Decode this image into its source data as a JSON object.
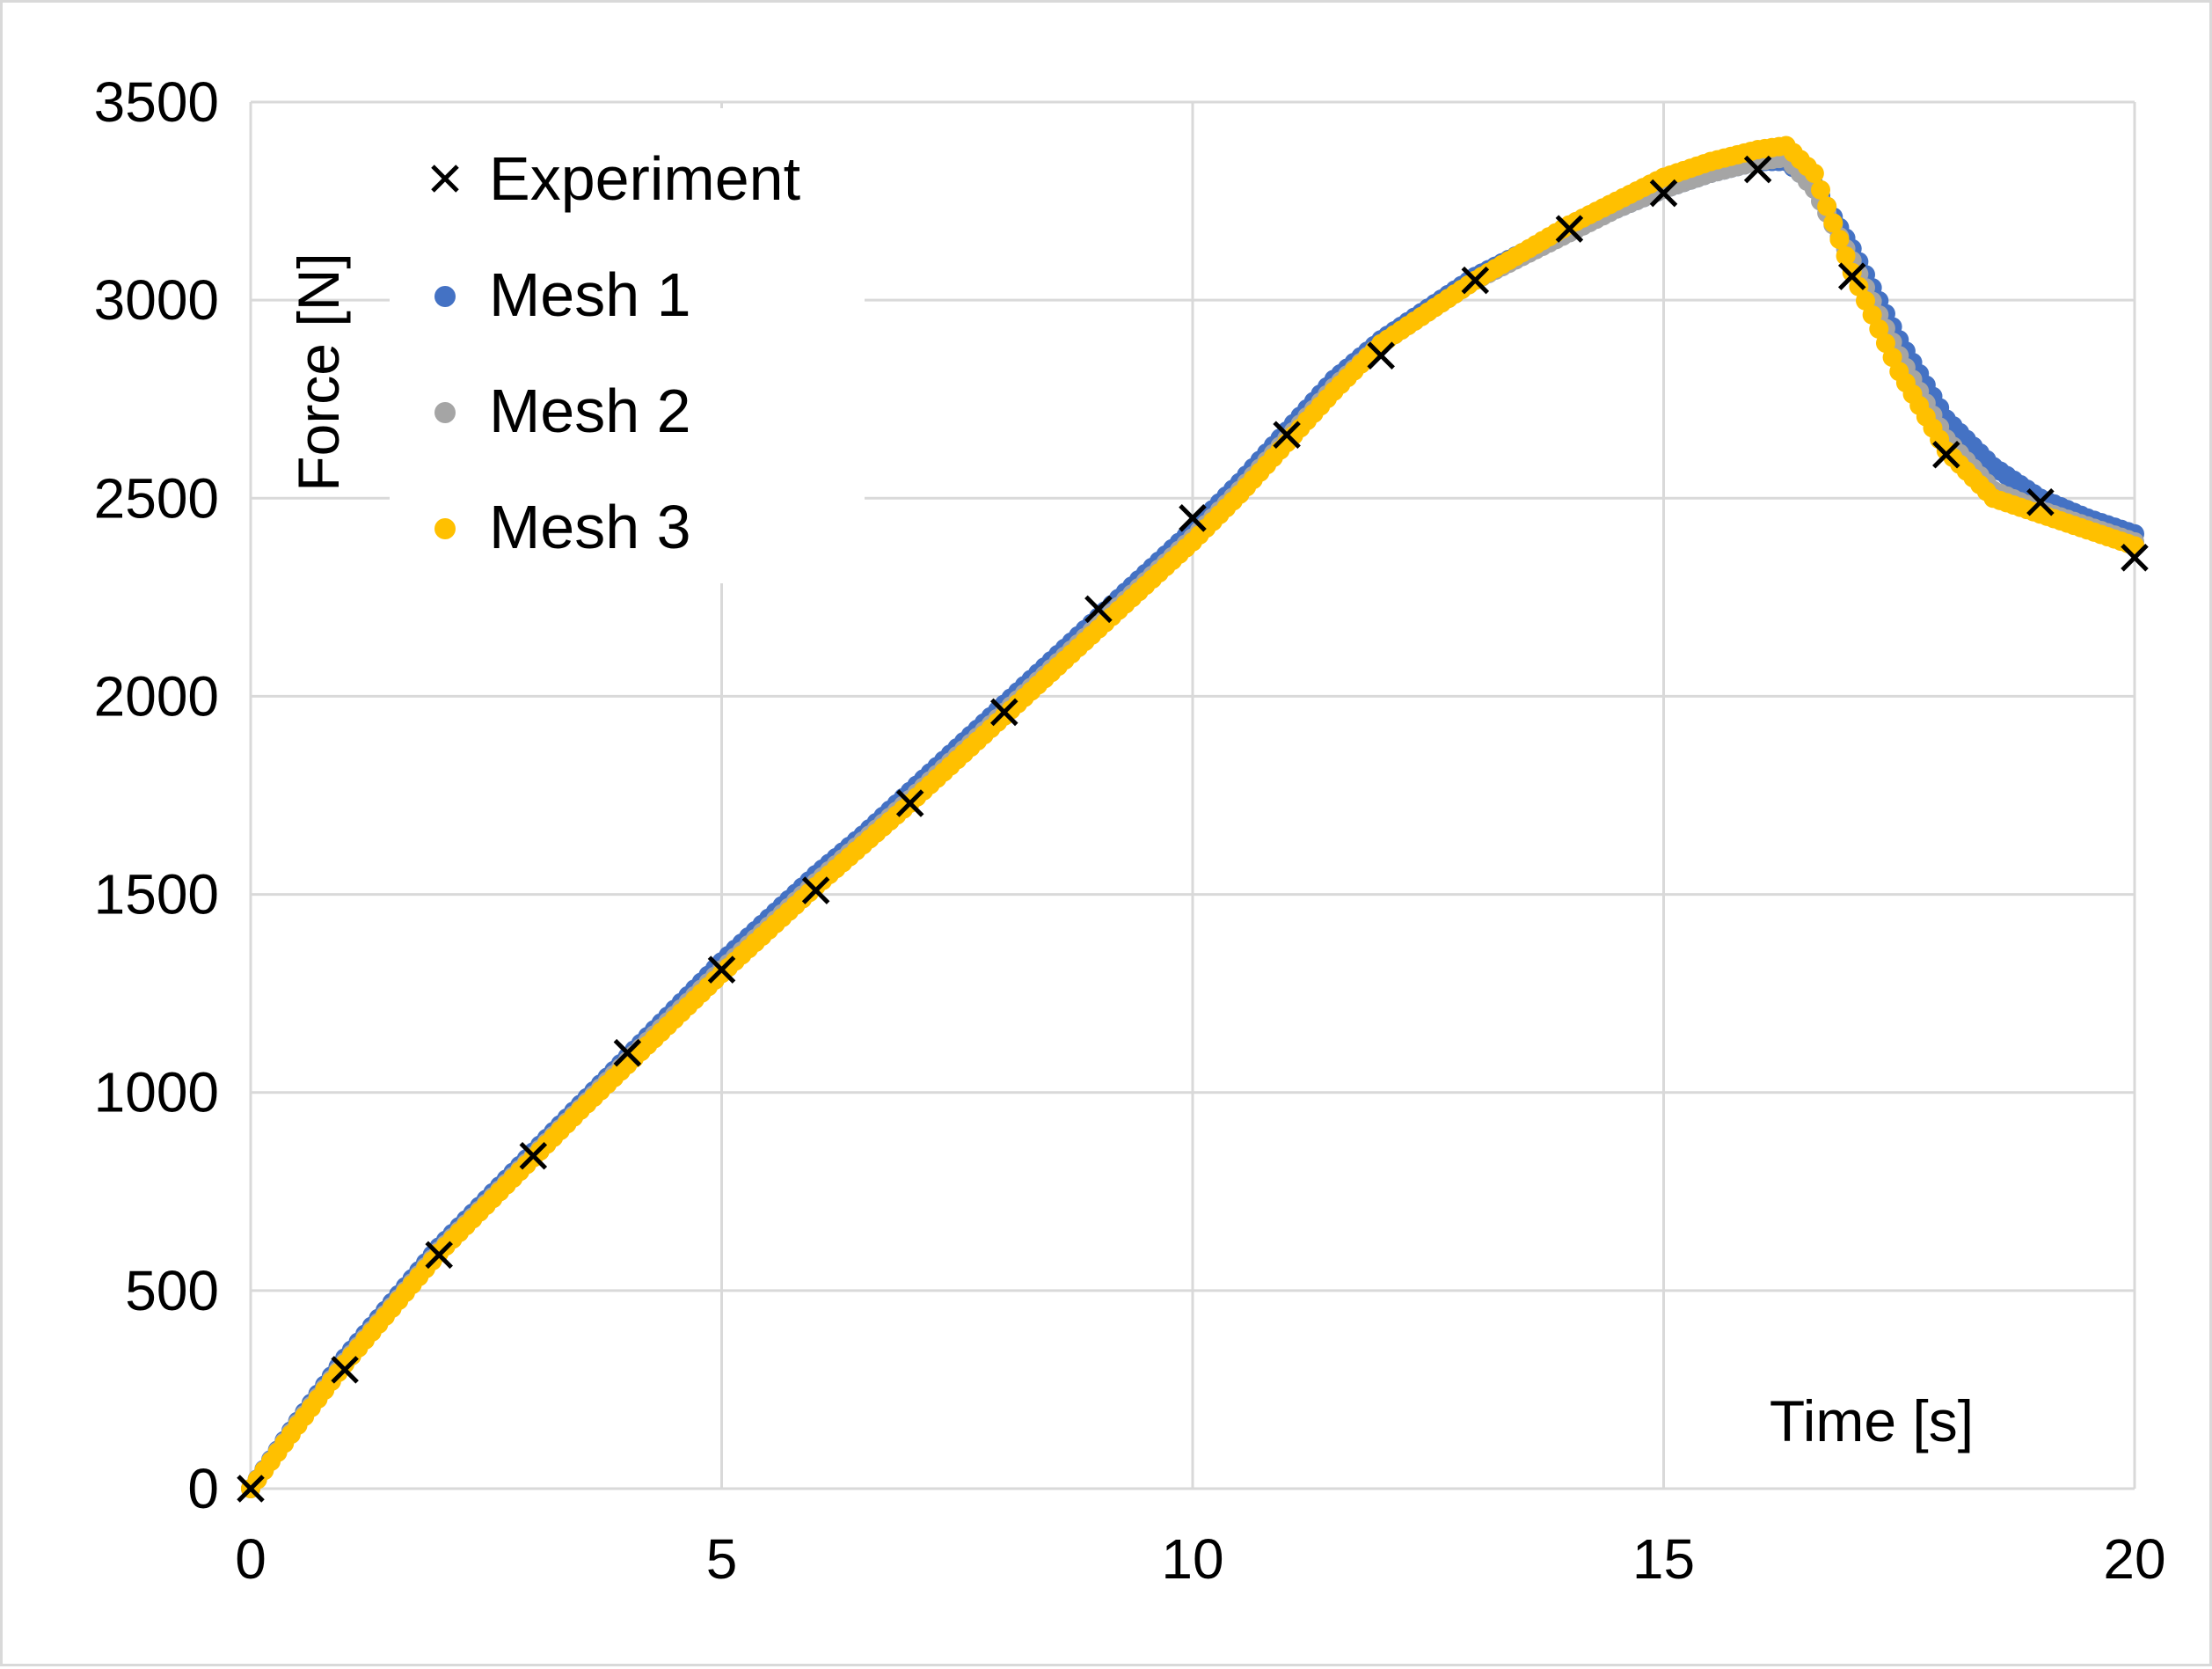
{
  "chart_data": {
    "type": "scatter",
    "title": "",
    "xlabel": "Time [s]",
    "ylabel": "Force [N]",
    "xlim": [
      0,
      20
    ],
    "ylim": [
      0,
      3500
    ],
    "xticks": [
      0,
      5,
      10,
      15,
      20
    ],
    "yticks": [
      0,
      500,
      1000,
      1500,
      2000,
      2500,
      3000,
      3500
    ],
    "xtick_labels": [
      "0",
      "5",
      "10",
      "15",
      "20"
    ],
    "ytick_labels": [
      "0",
      "500",
      "1000",
      "1500",
      "2000",
      "2500",
      "3000",
      "3500"
    ],
    "grid": true,
    "legend_position": "top-left",
    "series": [
      {
        "name": "Experiment",
        "marker": "x",
        "color": "#000000",
        "x": [
          0,
          1,
          2,
          3,
          4,
          5,
          6,
          7,
          8,
          9,
          10,
          11,
          12,
          13,
          14,
          15,
          16,
          17,
          18,
          19,
          20
        ],
        "y": [
          0,
          300,
          590,
          840,
          1100,
          1310,
          1510,
          1730,
          1960,
          2220,
          2450,
          2660,
          2860,
          3050,
          3180,
          3270,
          3330,
          3060,
          2610,
          2490,
          2350
        ]
      },
      {
        "name": "Mesh 1",
        "marker": "circle",
        "color": "#4472c4",
        "x": [
          0,
          0.5,
          1,
          1.5,
          2,
          2.5,
          3,
          3.5,
          4,
          4.5,
          5,
          5.5,
          6,
          6.5,
          7,
          7.5,
          8,
          8.5,
          9,
          9.5,
          10,
          10.5,
          11,
          11.5,
          12,
          12.5,
          13,
          13.5,
          14,
          14.5,
          15,
          15.5,
          16,
          16.3,
          16.6,
          17,
          17.5,
          18,
          18.5,
          19,
          19.5,
          20
        ],
        "y": [
          0,
          170,
          330,
          470,
          610,
          730,
          850,
          970,
          1090,
          1210,
          1330,
          1440,
          1550,
          1650,
          1760,
          1870,
          1980,
          2090,
          2200,
          2310,
          2420,
          2540,
          2670,
          2800,
          2900,
          2980,
          3060,
          3120,
          3180,
          3230,
          3280,
          3320,
          3350,
          3350,
          3290,
          3130,
          2900,
          2700,
          2580,
          2500,
          2450,
          2410
        ]
      },
      {
        "name": "Mesh 2",
        "marker": "circle",
        "color": "#a5a5a5",
        "x": [
          0,
          0.5,
          1,
          1.5,
          2,
          2.5,
          3,
          3.5,
          4,
          4.5,
          5,
          5.5,
          6,
          6.5,
          7,
          7.5,
          8,
          8.5,
          9,
          9.5,
          10,
          10.5,
          11,
          11.5,
          12,
          12.5,
          13,
          13.5,
          14,
          14.5,
          15,
          15.5,
          16,
          16.3,
          16.6,
          17,
          17.5,
          18,
          18.5,
          19,
          19.5,
          20
        ],
        "y": [
          0,
          165,
          320,
          460,
          600,
          720,
          840,
          960,
          1080,
          1195,
          1310,
          1420,
          1530,
          1635,
          1740,
          1850,
          1960,
          2070,
          2180,
          2290,
          2400,
          2520,
          2650,
          2780,
          2890,
          2970,
          3050,
          3110,
          3170,
          3230,
          3280,
          3320,
          3350,
          3360,
          3280,
          3100,
          2860,
          2650,
          2520,
          2470,
          2430,
          2390
        ]
      },
      {
        "name": "Mesh 3",
        "marker": "circle",
        "color": "#ffc000",
        "x": [
          0,
          0.5,
          1,
          1.5,
          2,
          2.5,
          3,
          3.5,
          4,
          4.5,
          5,
          5.5,
          6,
          6.5,
          7,
          7.5,
          8,
          8.5,
          9,
          9.5,
          10,
          10.5,
          11,
          11.5,
          12,
          12.5,
          13,
          13.5,
          14,
          14.5,
          15,
          15.5,
          16,
          16.3,
          16.6,
          17,
          17.5,
          18,
          18.5,
          19,
          19.5,
          20
        ],
        "y": [
          0,
          160,
          315,
          455,
          595,
          715,
          835,
          955,
          1070,
          1185,
          1300,
          1410,
          1520,
          1625,
          1730,
          1840,
          1950,
          2060,
          2170,
          2280,
          2390,
          2510,
          2640,
          2770,
          2890,
          2970,
          3050,
          3120,
          3190,
          3250,
          3310,
          3350,
          3380,
          3390,
          3320,
          3070,
          2820,
          2620,
          2500,
          2460,
          2420,
          2380
        ]
      }
    ]
  }
}
